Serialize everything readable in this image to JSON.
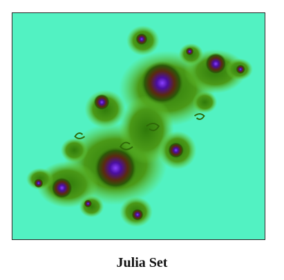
{
  "figure": {
    "caption": "Julia Set",
    "colors": {
      "background": "#52f2c2",
      "inner_fringe": "#3a8a10",
      "mid_fringe": "#1f5a06",
      "dark_ring": "#5a2a10",
      "core": "#3b0a8a",
      "core_highlight": "#7a30ff",
      "border": "#222222"
    }
  }
}
